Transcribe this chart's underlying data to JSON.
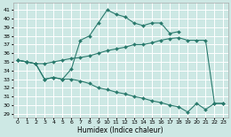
{
  "xlabel": "Humidex (Indice chaleur)",
  "bg_color": "#cde8e4",
  "grid_color": "#ffffff",
  "line_color": "#2a7a6d",
  "xlim": [
    -0.5,
    23.5
  ],
  "ylim": [
    28.6,
    41.8
  ],
  "yticks": [
    29,
    30,
    31,
    32,
    33,
    34,
    35,
    36,
    37,
    38,
    39,
    40,
    41
  ],
  "xticks": [
    0,
    1,
    2,
    3,
    4,
    5,
    6,
    7,
    8,
    9,
    10,
    11,
    12,
    13,
    14,
    15,
    16,
    17,
    18,
    19,
    20,
    21,
    22,
    23
  ],
  "series": [
    {
      "x": [
        0,
        1,
        2,
        3,
        4,
        5,
        6,
        7,
        8,
        9,
        10,
        11,
        12,
        13,
        14,
        15,
        16,
        17,
        18
      ],
      "y": [
        35.2,
        35.0,
        34.8,
        33.0,
        33.2,
        33.0,
        34.2,
        37.5,
        38.0,
        39.5,
        41.0,
        40.5,
        40.2,
        39.5,
        39.2,
        39.5,
        39.5,
        38.3,
        38.5
      ]
    },
    {
      "x": [
        0,
        1,
        2,
        3,
        4,
        5,
        6,
        7,
        8,
        9,
        10,
        11,
        12,
        13,
        14,
        15,
        16,
        17,
        18,
        19,
        20,
        21,
        22,
        23
      ],
      "y": [
        35.2,
        35.0,
        34.8,
        34.8,
        35.0,
        35.2,
        35.4,
        35.5,
        35.7,
        36.0,
        36.3,
        36.5,
        36.7,
        37.0,
        37.0,
        37.2,
        37.5,
        37.7,
        37.8,
        37.5,
        37.5,
        37.5,
        30.2,
        30.2
      ]
    },
    {
      "x": [
        0,
        1,
        2,
        3,
        4,
        5,
        6,
        7,
        8,
        9,
        10,
        11,
        12,
        13,
        14,
        15,
        16,
        17,
        18,
        19,
        20,
        21,
        22,
        23
      ],
      "y": [
        35.2,
        35.0,
        34.8,
        33.0,
        33.2,
        33.0,
        33.0,
        32.8,
        32.5,
        32.0,
        31.8,
        31.5,
        31.3,
        31.0,
        30.8,
        30.5,
        30.3,
        30.0,
        29.8,
        29.2,
        30.2,
        29.5,
        30.2,
        30.2
      ]
    }
  ]
}
